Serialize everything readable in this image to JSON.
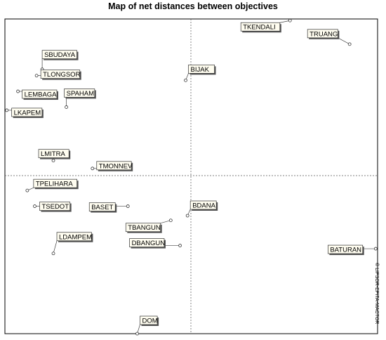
{
  "chart_data": {
    "type": "scatter",
    "title": "Map of net distances between objectives",
    "xlabel": "",
    "ylabel": "",
    "xlim": [
      -100,
      100
    ],
    "ylim": [
      -100,
      100
    ],
    "grid": false,
    "center_lines": true,
    "copyright": "© LIPSOR-EPITA-MACTOR",
    "points": [
      {
        "label": "TKENDALI",
        "x": 53,
        "y": 99
      },
      {
        "label": "TRUANG",
        "x": 85,
        "y": 84
      },
      {
        "label": "SBUDAYA",
        "x": -80,
        "y": 68
      },
      {
        "label": "TLONGSOR",
        "x": -83,
        "y": 64
      },
      {
        "label": "BIJAK",
        "x": -3,
        "y": 61
      },
      {
        "label": "LEMBAGA",
        "x": -93,
        "y": 54
      },
      {
        "label": "SPAHAM",
        "x": -67,
        "y": 44
      },
      {
        "label": "LKAPEM",
        "x": -99,
        "y": 42
      },
      {
        "label": "LMITRA",
        "x": -74,
        "y": 10
      },
      {
        "label": "TMONNEV",
        "x": -53,
        "y": 5
      },
      {
        "label": "TPELIHARA",
        "x": -88,
        "y": -9
      },
      {
        "label": "TSEDOT",
        "x": -84,
        "y": -19
      },
      {
        "label": "BASET",
        "x": -34,
        "y": -19
      },
      {
        "label": "BDANA",
        "x": -2,
        "y": -25
      },
      {
        "label": "TBANGUN",
        "x": -11,
        "y": -28
      },
      {
        "label": "LDAMPEM",
        "x": -74,
        "y": -49
      },
      {
        "label": "DBANGUN",
        "x": -6,
        "y": -44
      },
      {
        "label": "BATURAN",
        "x": 99,
        "y": -46
      },
      {
        "label": "DOM",
        "x": -29,
        "y": -100
      }
    ]
  }
}
